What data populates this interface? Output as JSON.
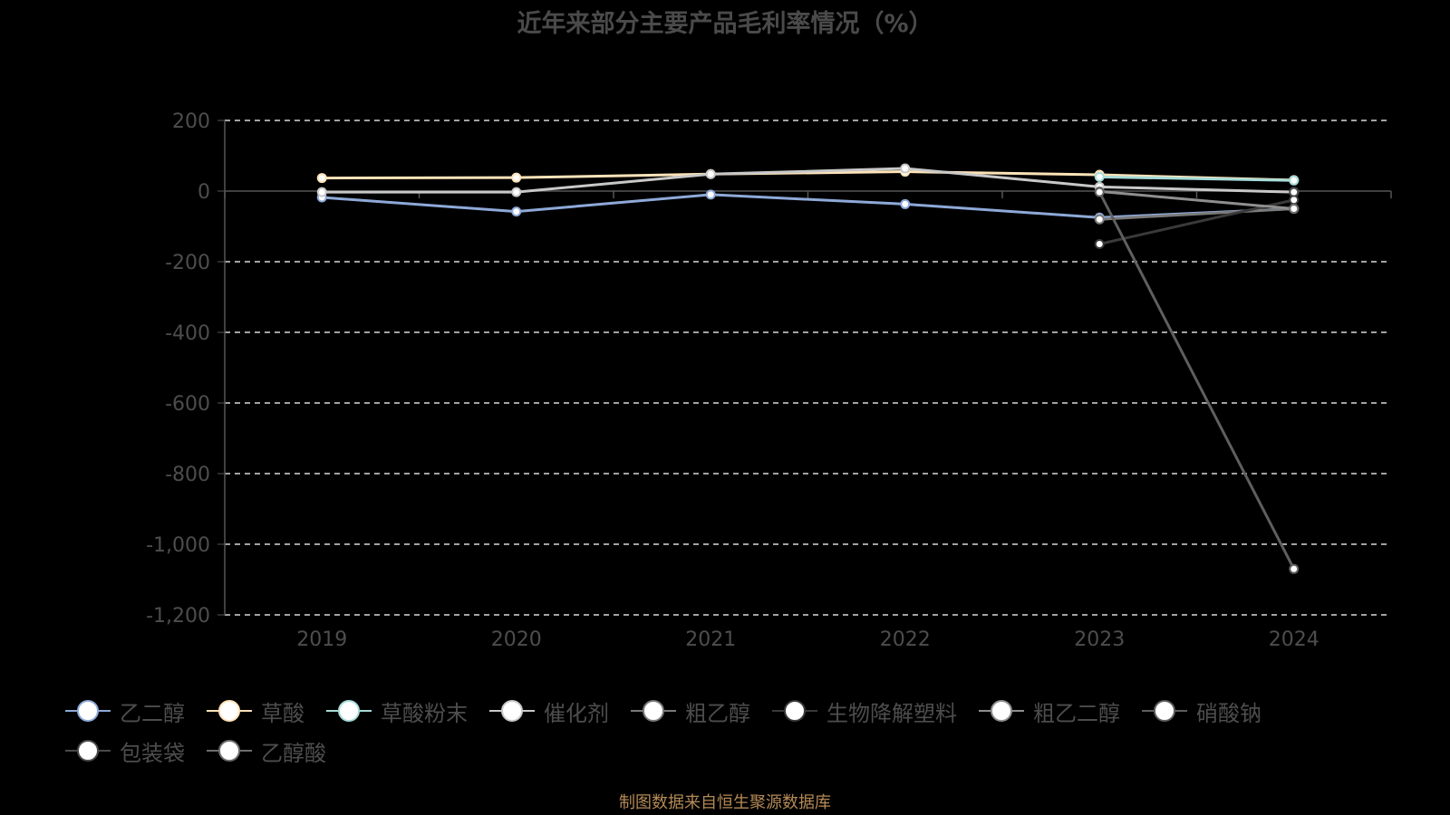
{
  "chart_data": {
    "type": "line",
    "title": "近年来部分主要产品毛利率情况（%）",
    "x": [
      "2019",
      "2020",
      "2021",
      "2022",
      "2023",
      "2024"
    ],
    "ylim": [
      -1200,
      200
    ],
    "yticks": [
      200,
      0,
      -200,
      -400,
      -600,
      -800,
      -1000,
      -1200
    ],
    "ytick_labels": [
      "200",
      "0",
      "-200",
      "-400",
      "-600",
      "-800",
      "-1,000",
      "-1,200"
    ],
    "grid": true,
    "legend_position": "bottom",
    "series": [
      {
        "name": "乙二醇",
        "color": "#8ea9d8",
        "values": [
          -18,
          -58,
          -10,
          -37,
          -75,
          -50
        ]
      },
      {
        "name": "草酸",
        "color": "#fde3b8",
        "values": [
          37,
          38,
          48,
          55,
          46,
          31
        ]
      },
      {
        "name": "草酸粉末",
        "color": "#a6dcd8",
        "values": [
          null,
          null,
          null,
          null,
          40,
          30
        ]
      },
      {
        "name": "催化剂",
        "color": "#c8c8c8",
        "values": [
          -3,
          -3,
          48,
          64,
          12,
          -3
        ]
      },
      {
        "name": "粗乙醇",
        "color": "#7a7a7a",
        "values": [
          null,
          null,
          null,
          null,
          -80,
          -50
        ]
      },
      {
        "name": "生物降解塑料",
        "color": "#3a3a3a",
        "values": [
          null,
          null,
          null,
          null,
          -150,
          -25
        ]
      },
      {
        "name": "粗乙二醇",
        "color": "#8f8f8f",
        "values": [
          null,
          null,
          null,
          null,
          -1,
          -50
        ]
      },
      {
        "name": "硝酸钠",
        "color": "#5f5f5f",
        "values": [
          null,
          null,
          null,
          null,
          -3,
          -1070
        ]
      },
      {
        "name": "包装袋",
        "color": "#4a4a4a",
        "values": [
          null,
          null,
          null,
          null,
          null,
          -3
        ]
      },
      {
        "name": "乙醇酸",
        "color": "#6e6e6e",
        "values": [
          null,
          null,
          null,
          null,
          null,
          -50
        ]
      }
    ]
  },
  "source_note": "制图数据来自恒生聚源数据库"
}
